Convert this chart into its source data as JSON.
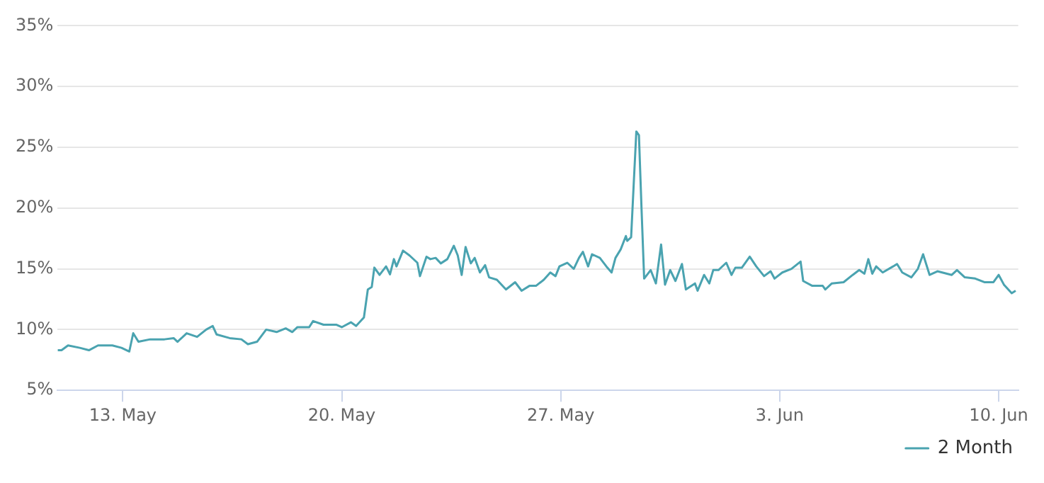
{
  "chart_data": {
    "type": "line",
    "x": [
      "--05-10T22:00",
      "--05-11T01:00",
      "--05-11T06:00",
      "--05-11T15:00",
      "--05-11T22:00",
      "--05-12T05:00",
      "--05-12T16:00",
      "--05-12T23:00",
      "--05-13T05:00",
      "--05-13T08:00",
      "--05-13T12:00",
      "--05-13T21:00",
      "--05-14T08:00",
      "--05-14T15:00",
      "--05-14T18:00",
      "--05-15T01:00",
      "--05-15T09:00",
      "--05-15T16:00",
      "--05-15T21:00",
      "--05-16T00:00",
      "--05-16T10:00",
      "--05-16T19:00",
      "--05-17T00:00",
      "--05-17T07:00",
      "--05-17T14:00",
      "--05-17T22:00",
      "--05-18T05:00",
      "--05-18T10:00",
      "--05-18T14:00",
      "--05-18T23:00",
      "--05-19T02:00",
      "--05-19T10:00",
      "--05-19T20:00",
      "--05-20T00:00",
      "--05-20T07:00",
      "--05-20T11:00",
      "--05-20T17:00",
      "--05-20T20:00",
      "--05-20T23:00",
      "--05-21T01:00",
      "--05-21T05:00",
      "--05-21T10:00",
      "--05-21T13:00",
      "--05-21T16:00",
      "--05-21T18:00",
      "--05-21T23:00",
      "--05-22T04:00",
      "--05-22T10:00",
      "--05-22T12:00",
      "--05-22T17:00",
      "--05-22T20:00",
      "--05-23T00:00",
      "--05-23T04:00",
      "--05-23T09:00",
      "--05-23T14:00",
      "--05-23T17:00",
      "--05-23T20:00",
      "--05-23T23:00",
      "--05-24T03:00",
      "--05-24T06:00",
      "--05-24T10:00",
      "--05-24T14:00",
      "--05-24T17:00",
      "--05-24T23:00",
      "--05-25T06:00",
      "--05-25T13:00",
      "--05-25T18:00",
      "--05-26T00:00",
      "--05-26T05:00",
      "--05-26T11:00",
      "--05-26T16:00",
      "--05-26T20:00",
      "--05-26T23:00",
      "--05-27T05:00",
      "--05-27T10:00",
      "--05-27T14:00",
      "--05-27T17:00",
      "--05-27T21:00",
      "--05-28T00:00",
      "--05-28T06:00",
      "--05-28T11:00",
      "--05-28T15:00",
      "--05-28T18:00",
      "--05-28T22:00",
      "--05-29T02:00",
      "--05-29T03:00",
      "--05-29T06:00",
      "--05-29T08:00",
      "--05-29T10:00",
      "--05-29T12:00",
      "--05-29T14:00",
      "--05-29T16:00",
      "--05-29T21:00",
      "--05-30T01:00",
      "--05-30T05:00",
      "--05-30T08:00",
      "--05-30T12:00",
      "--05-30T16:00",
      "--05-30T21:00",
      "--05-31T00:00",
      "--05-31T07:00",
      "--05-31T09:00",
      "--05-31T14:00",
      "--05-31T18:00",
      "--05-31T21:00",
      "--06-01T01:00",
      "--06-01T07:00",
      "--06-01T11:00",
      "--06-01T14:00",
      "--06-01T19:00",
      "--06-02T01:00",
      "--06-02T06:00",
      "--06-02T12:00",
      "--06-02T17:00",
      "--06-02T20:00",
      "--06-03T02:00",
      "--06-03T09:00",
      "--06-03T16:00",
      "--06-03T18:00",
      "--06-04T01:00",
      "--06-04T09:00",
      "--06-04T11:00",
      "--06-04T16:00",
      "--06-05T01:00",
      "--06-05T08:00",
      "--06-05T13:00",
      "--06-05T17:00",
      "--06-05T20:00",
      "--06-05T23:00",
      "--06-06T02:00",
      "--06-06T07:00",
      "--06-06T15:00",
      "--06-06T18:00",
      "--06-06T22:00",
      "--06-07T05:00",
      "--06-07T10:00",
      "--06-07T14:00",
      "--06-07T19:00",
      "--06-08T01:00",
      "--06-08T12:00",
      "--06-08T16:00",
      "--06-08T22:00",
      "--06-09T06:00",
      "--06-09T13:00",
      "--06-09T20:00",
      "--06-10T00:00",
      "--06-10T04:00",
      "--06-10T10:00",
      "--06-10T13:00"
    ],
    "series": [
      {
        "name": "2 Month",
        "color": "#4aa3b0",
        "values": [
          8.3,
          8.3,
          8.7,
          8.5,
          8.3,
          8.7,
          8.7,
          8.5,
          8.2,
          9.7,
          9.0,
          9.2,
          9.2,
          9.3,
          9.0,
          9.7,
          9.4,
          10.0,
          10.3,
          9.6,
          9.3,
          9.2,
          8.8,
          9.0,
          10.0,
          9.8,
          10.1,
          9.8,
          10.2,
          10.2,
          10.7,
          10.4,
          10.4,
          10.2,
          10.6,
          10.3,
          11.0,
          13.3,
          13.5,
          15.1,
          14.5,
          15.2,
          14.55,
          15.8,
          15.2,
          16.5,
          16.1,
          15.5,
          14.4,
          16.0,
          15.8,
          15.9,
          15.45,
          15.8,
          16.9,
          16.1,
          14.5,
          16.8,
          15.45,
          15.9,
          14.7,
          15.3,
          14.3,
          14.1,
          13.3,
          13.9,
          13.2,
          13.6,
          13.6,
          14.1,
          14.7,
          14.4,
          15.2,
          15.5,
          15.0,
          15.9,
          16.4,
          15.2,
          16.2,
          15.9,
          15.2,
          14.7,
          15.9,
          16.6,
          17.7,
          17.3,
          17.6,
          22.0,
          26.3,
          26.0,
          19.9,
          14.2,
          14.9,
          13.8,
          17.0,
          13.7,
          14.9,
          14.0,
          15.4,
          13.3,
          13.8,
          13.2,
          14.5,
          13.8,
          14.9,
          14.9,
          15.5,
          14.5,
          15.1,
          15.1,
          16.0,
          15.2,
          14.4,
          14.8,
          14.2,
          14.7,
          15.0,
          15.6,
          14.0,
          13.6,
          13.6,
          13.3,
          13.8,
          13.9,
          14.5,
          14.9,
          14.6,
          15.8,
          14.6,
          15.2,
          14.7,
          15.2,
          15.4,
          14.7,
          14.3,
          15.0,
          16.2,
          14.5,
          14.8,
          14.5,
          14.9,
          14.3,
          14.2,
          13.9,
          13.9,
          14.5,
          13.7,
          13.0,
          13.2
        ]
      }
    ],
    "xlim": [
      "--05-10T22:00",
      "--06-10T15:00"
    ],
    "xticks": [
      {
        "value": "--05-13",
        "label": "13. May"
      },
      {
        "value": "--05-20",
        "label": "20. May"
      },
      {
        "value": "--05-27",
        "label": "27. May"
      },
      {
        "value": "--06-03",
        "label": "3. Jun"
      },
      {
        "value": "--06-10",
        "label": "10. Jun"
      }
    ],
    "ylim": [
      5,
      35
    ],
    "yticks": [
      {
        "value": 5,
        "label": "5%"
      },
      {
        "value": 10,
        "label": "10%"
      },
      {
        "value": 15,
        "label": "15%"
      },
      {
        "value": 20,
        "label": "20%"
      },
      {
        "value": 25,
        "label": "25%"
      },
      {
        "value": 30,
        "label": "30%"
      },
      {
        "value": 35,
        "label": "35%"
      }
    ],
    "grid": "y",
    "legend": "bottom right",
    "marker": "none",
    "line_style": "solid"
  }
}
